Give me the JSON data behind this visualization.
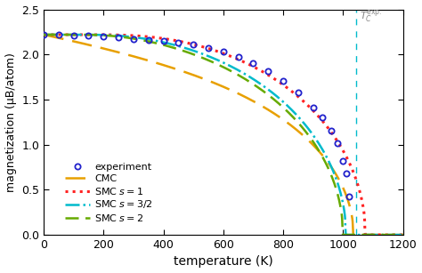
{
  "xlabel": "temperature (K)",
  "ylabel": "magnetization (μB/atom)",
  "xlim": [
    0,
    1200
  ],
  "ylim": [
    0.0,
    2.5
  ],
  "xticks": [
    0,
    200,
    400,
    600,
    800,
    1000,
    1200
  ],
  "yticks": [
    0.0,
    0.5,
    1.0,
    1.5,
    2.0,
    2.5
  ],
  "Tc_exp": 1044,
  "M0": 2.22,
  "colors": {
    "experiment": "#2222cc",
    "CMC": "#e8a000",
    "SMC_s1": "#ff2222",
    "SMC_s32": "#00bbcc",
    "SMC_s2": "#66aa00"
  },
  "background_color": "#ffffff",
  "Tc_CMC": 1035,
  "Tc_s1": 1075,
  "Tc_s32": 1010,
  "Tc_s2": 1000,
  "exp_T": [
    0,
    50,
    100,
    150,
    200,
    250,
    300,
    350,
    400,
    450,
    500,
    550,
    600,
    650,
    700,
    750,
    800,
    850,
    900,
    930,
    960,
    980,
    1000,
    1010,
    1020
  ],
  "exp_M": [
    2.22,
    2.215,
    2.21,
    2.205,
    2.195,
    2.185,
    2.175,
    2.165,
    2.15,
    2.13,
    2.11,
    2.07,
    2.03,
    1.97,
    1.9,
    1.82,
    1.71,
    1.58,
    1.41,
    1.3,
    1.15,
    1.02,
    0.82,
    0.68,
    0.42
  ]
}
